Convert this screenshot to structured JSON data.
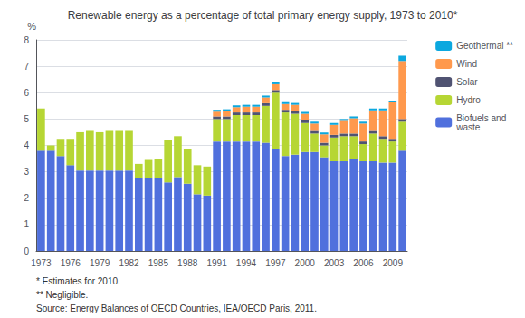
{
  "chart_data": {
    "type": "bar",
    "title": "Renewable energy as a percentage of total primary energy supply, 1973 to 2010*",
    "ylabel": "%",
    "categories": [
      "1973",
      null,
      null,
      "1976",
      null,
      null,
      "1979",
      null,
      null,
      "1982",
      null,
      null,
      "1985",
      null,
      null,
      "1988",
      null,
      null,
      "1991",
      null,
      null,
      "1994",
      null,
      null,
      "1997",
      null,
      null,
      "2000",
      null,
      null,
      "2003",
      null,
      null,
      "2006",
      null,
      null,
      "2009",
      null
    ],
    "series": [
      {
        "name": "Biofuels and\nwaste",
        "values": [
          3.8,
          3.8,
          3.6,
          3.25,
          3.05,
          3.05,
          3.05,
          3.05,
          3.05,
          3.05,
          2.75,
          2.75,
          2.75,
          2.6,
          2.8,
          2.55,
          2.15,
          2.1,
          4.15,
          4.15,
          4.15,
          4.15,
          4.15,
          4.1,
          3.85,
          3.6,
          3.65,
          3.75,
          3.75,
          3.55,
          3.4,
          3.4,
          3.5,
          3.4,
          3.4,
          3.35,
          3.35,
          3.8
        ]
      },
      {
        "name": "Hydro",
        "values": [
          1.6,
          0.2,
          0.65,
          1.0,
          1.45,
          1.5,
          1.45,
          1.5,
          1.5,
          1.5,
          0.55,
          0.7,
          0.75,
          1.6,
          1.55,
          1.3,
          1.1,
          1.1,
          0.85,
          0.85,
          1.0,
          1.0,
          1.0,
          1.4,
          2.15,
          1.65,
          1.55,
          1.1,
          0.7,
          0.45,
          0.9,
          0.95,
          0.85,
          0.65,
          1.05,
          0.9,
          0.8,
          1.1
        ]
      },
      {
        "name": "Solar",
        "values": [
          0.0,
          0.0,
          0.0,
          0.0,
          0.0,
          0.0,
          0.0,
          0.0,
          0.0,
          0.0,
          0.0,
          0.0,
          0.0,
          0.0,
          0.0,
          0.0,
          0.0,
          0.0,
          0.1,
          0.1,
          0.1,
          0.1,
          0.1,
          0.1,
          0.1,
          0.1,
          0.1,
          0.1,
          0.1,
          0.1,
          0.1,
          0.1,
          0.1,
          0.1,
          0.1,
          0.1,
          0.1,
          0.1
        ]
      },
      {
        "name": "Wind",
        "values": [
          0.0,
          0.0,
          0.0,
          0.0,
          0.0,
          0.0,
          0.0,
          0.0,
          0.0,
          0.0,
          0.0,
          0.0,
          0.0,
          0.0,
          0.0,
          0.0,
          0.0,
          0.0,
          0.18,
          0.2,
          0.2,
          0.22,
          0.22,
          0.22,
          0.22,
          0.22,
          0.24,
          0.25,
          0.28,
          0.32,
          0.38,
          0.48,
          0.58,
          0.68,
          0.78,
          0.98,
          1.38,
          2.2
        ]
      },
      {
        "name": "Geothermal **",
        "values": [
          0.0,
          0.0,
          0.0,
          0.0,
          0.0,
          0.0,
          0.0,
          0.0,
          0.0,
          0.0,
          0.0,
          0.0,
          0.0,
          0.0,
          0.0,
          0.0,
          0.0,
          0.0,
          0.07,
          0.07,
          0.07,
          0.07,
          0.07,
          0.07,
          0.07,
          0.07,
          0.07,
          0.07,
          0.07,
          0.07,
          0.07,
          0.07,
          0.07,
          0.07,
          0.07,
          0.07,
          0.07,
          0.2
        ]
      }
    ],
    "stacked": true,
    "ylim": [
      0,
      8
    ],
    "yticks": [
      0,
      1,
      2,
      3,
      4,
      5,
      6,
      7,
      8
    ],
    "grid": true,
    "legend": "upper right",
    "annotations": [
      "* Estimates for 2010.",
      "** Negligible.",
      "Source: Energy Balances of OECD Countries, IEA/OECD Paris, 2011."
    ]
  }
}
